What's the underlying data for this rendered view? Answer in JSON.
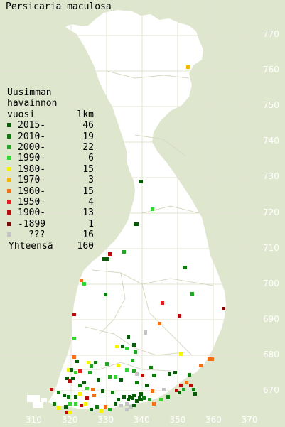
{
  "title": "Persicaria maculosa",
  "legend": {
    "header_lines": [
      "Uusimman",
      "havainnon",
      "vuosi"
    ],
    "count_header": "lkm",
    "items": [
      {
        "label": "2015-",
        "count": "46",
        "color": "#0a5a0a"
      },
      {
        "label": "2010-",
        "count": "19",
        "color": "#0e7a10"
      },
      {
        "label": "2000-",
        "count": "22",
        "color": "#24a424"
      },
      {
        "label": "1990-",
        "count": "6",
        "color": "#34d434"
      },
      {
        "label": "1980-",
        "count": "15",
        "color": "#f4f400"
      },
      {
        "label": "1970-",
        "count": "3",
        "color": "#f0b800"
      },
      {
        "label": "1960-",
        "count": "15",
        "color": "#f07018"
      },
      {
        "label": "1950-",
        "count": "4",
        "color": "#e02020"
      },
      {
        "label": "1900-",
        "count": "13",
        "color": "#b80c0c"
      },
      {
        "label": "-1899",
        "count": "1",
        "color": "#7a0a0a"
      },
      {
        "label": "???",
        "count": "16",
        "color": "#c4c4c4"
      }
    ],
    "total_label": "Yhteensä",
    "total_count": "160"
  },
  "y_ticks": [
    "770",
    "760",
    "750",
    "740",
    "730",
    "720",
    "710",
    "700",
    "690",
    "680",
    "670"
  ],
  "x_ticks": [
    "310",
    "320",
    "330",
    "340",
    "350",
    "360",
    "370"
  ]
}
